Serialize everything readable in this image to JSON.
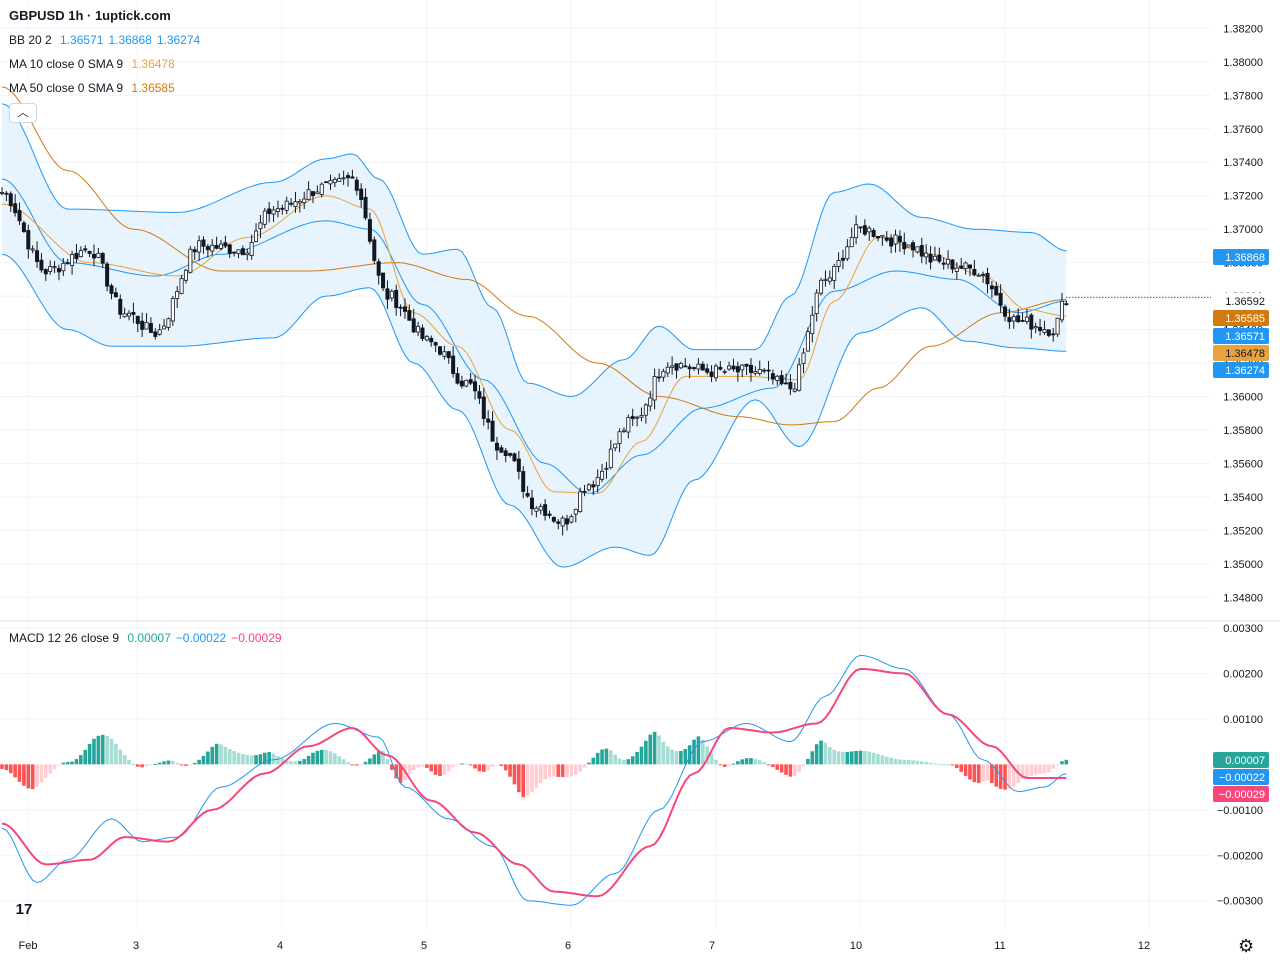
{
  "header": {
    "symbol_title": "GBPUSD 1h · 1uptick.com",
    "bb": {
      "label": "BB 20 2",
      "v1": "1.36571",
      "v2": "1.36868",
      "v3": "1.36274"
    },
    "ma10": {
      "label": "MA 10 close 0 SMA 9",
      "value": "1.36478"
    },
    "ma50": {
      "label": "MA 50 close 0 SMA 9",
      "value": "1.36585"
    },
    "macd": {
      "label": "MACD 12 26 close 9",
      "hist": "0.00007",
      "macd": "−0.00022",
      "signal": "−0.00029"
    }
  },
  "colors": {
    "bb": "#2196f3",
    "bb_fill": "#e3f2fd",
    "ma10": "#e8a33d",
    "ma50": "#d07a10",
    "up_hist": "#26a69a",
    "up_hist_light": "#a5dcd4",
    "down_hist": "#ff5252",
    "down_hist_light": "#ffcdd2",
    "signal": "#f7467a",
    "price_tag": "#131722"
  },
  "chart_data": [
    {
      "type": "candlestick",
      "title": "GBPUSD 1h",
      "x_tick_labels": [
        "Feb",
        "3",
        "4",
        "5",
        "6",
        "7",
        "10",
        "11",
        "12"
      ],
      "y_ticks": [
        "1.38200",
        "1.38000",
        "1.37800",
        "1.37600",
        "1.37400",
        "1.37200",
        "1.37000",
        "1.36800",
        "1.36600",
        "1.36400",
        "1.36200",
        "1.36000",
        "1.35800",
        "1.35600",
        "1.35400",
        "1.35200",
        "1.35000",
        "1.34800"
      ],
      "ylim": [
        1.347,
        1.3825
      ],
      "last_price": "1.36592",
      "price_labels": [
        "1.36868",
        "1.36592",
        "1.36585",
        "1.36571",
        "1.36478",
        "1.36274"
      ],
      "anchors": {
        "close": [
          [
            0,
            1.3722
          ],
          [
            10,
            1.3675
          ],
          [
            20,
            1.3688
          ],
          [
            28,
            1.365
          ],
          [
            35,
            1.3638
          ],
          [
            45,
            1.369
          ],
          [
            55,
            1.3688
          ],
          [
            62,
            1.3712
          ],
          [
            74,
            1.3725
          ],
          [
            80,
            1.373
          ],
          [
            88,
            1.366
          ],
          [
            98,
            1.3632
          ],
          [
            106,
            1.3608
          ],
          [
            114,
            1.357
          ],
          [
            122,
            1.3535
          ],
          [
            128,
            1.3525
          ],
          [
            134,
            1.3548
          ],
          [
            144,
            1.3585
          ],
          [
            152,
            1.362
          ],
          [
            162,
            1.3615
          ],
          [
            172,
            1.3615
          ],
          [
            180,
            1.3605
          ],
          [
            188,
            1.367
          ],
          [
            196,
            1.37
          ],
          [
            206,
            1.3692
          ],
          [
            214,
            1.368
          ],
          [
            222,
            1.3676
          ],
          [
            232,
            1.3645
          ],
          [
            240,
            1.364
          ],
          [
            243,
            1.3659
          ]
        ],
        "bb_upper": [
          [
            0,
            1.3775
          ],
          [
            15,
            1.3712
          ],
          [
            40,
            1.371
          ],
          [
            62,
            1.3728
          ],
          [
            74,
            1.3742
          ],
          [
            80,
            1.3745
          ],
          [
            86,
            1.373
          ],
          [
            96,
            1.3685
          ],
          [
            104,
            1.3688
          ],
          [
            112,
            1.3653
          ],
          [
            120,
            1.3608
          ],
          [
            130,
            1.36
          ],
          [
            142,
            1.3622
          ],
          [
            150,
            1.3642
          ],
          [
            158,
            1.3628
          ],
          [
            172,
            1.3628
          ],
          [
            180,
            1.366
          ],
          [
            190,
            1.3722
          ],
          [
            198,
            1.3727
          ],
          [
            210,
            1.3707
          ],
          [
            222,
            1.37
          ],
          [
            235,
            1.3698
          ],
          [
            243,
            1.3687
          ]
        ],
        "bb_lower": [
          [
            0,
            1.3685
          ],
          [
            15,
            1.364
          ],
          [
            25,
            1.363
          ],
          [
            40,
            1.363
          ],
          [
            62,
            1.3635
          ],
          [
            74,
            1.366
          ],
          [
            84,
            1.3665
          ],
          [
            94,
            1.362
          ],
          [
            104,
            1.3592
          ],
          [
            116,
            1.3535
          ],
          [
            128,
            1.3498
          ],
          [
            140,
            1.351
          ],
          [
            148,
            1.3505
          ],
          [
            158,
            1.355
          ],
          [
            172,
            1.3598
          ],
          [
            182,
            1.357
          ],
          [
            196,
            1.3638
          ],
          [
            210,
            1.3653
          ],
          [
            220,
            1.3633
          ],
          [
            232,
            1.3629
          ],
          [
            243,
            1.3627
          ]
        ],
        "bb_mid": [
          [
            0,
            1.373
          ],
          [
            15,
            1.368
          ],
          [
            35,
            1.3672
          ],
          [
            50,
            1.3685
          ],
          [
            74,
            1.3705
          ],
          [
            84,
            1.37
          ],
          [
            96,
            1.3655
          ],
          [
            110,
            1.361
          ],
          [
            124,
            1.356
          ],
          [
            134,
            1.3542
          ],
          [
            146,
            1.3565
          ],
          [
            160,
            1.3593
          ],
          [
            176,
            1.3605
          ],
          [
            190,
            1.3663
          ],
          [
            204,
            1.3675
          ],
          [
            218,
            1.367
          ],
          [
            232,
            1.365
          ],
          [
            243,
            1.3657
          ]
        ],
        "ma10": [
          [
            0,
            1.3715
          ],
          [
            20,
            1.368
          ],
          [
            40,
            1.3672
          ],
          [
            56,
            1.3695
          ],
          [
            74,
            1.372
          ],
          [
            84,
            1.3712
          ],
          [
            94,
            1.365
          ],
          [
            104,
            1.363
          ],
          [
            116,
            1.358
          ],
          [
            126,
            1.3543
          ],
          [
            136,
            1.3542
          ],
          [
            146,
            1.3573
          ],
          [
            156,
            1.3612
          ],
          [
            170,
            1.3612
          ],
          [
            182,
            1.361
          ],
          [
            190,
            1.3657
          ],
          [
            200,
            1.3695
          ],
          [
            212,
            1.3685
          ],
          [
            224,
            1.3672
          ],
          [
            234,
            1.3652
          ],
          [
            243,
            1.3648
          ]
        ],
        "ma50": [
          [
            0,
            1.3785
          ],
          [
            15,
            1.3735
          ],
          [
            30,
            1.37
          ],
          [
            50,
            1.3675
          ],
          [
            70,
            1.3675
          ],
          [
            90,
            1.368
          ],
          [
            106,
            1.367
          ],
          [
            120,
            1.3648
          ],
          [
            136,
            1.362
          ],
          [
            150,
            1.36
          ],
          [
            168,
            1.3588
          ],
          [
            180,
            1.3583
          ],
          [
            190,
            1.3585
          ],
          [
            200,
            1.3605
          ],
          [
            212,
            1.363
          ],
          [
            228,
            1.365
          ],
          [
            243,
            1.3658
          ]
        ]
      },
      "bar_count": 244
    },
    {
      "type": "macd",
      "title": "MACD 12 26 close 9",
      "y_ticks": [
        "0.00300",
        "0.00200",
        "0.00100",
        "−0.00100",
        "−0.00200",
        "−0.00300"
      ],
      "ylim": [
        -0.0036,
        0.003
      ],
      "values": {
        "histogram": "0.00007",
        "macd": "−0.00022",
        "signal": "−0.00029"
      },
      "anchors": {
        "macd": [
          [
            0,
            -0.0014
          ],
          [
            8,
            -0.0026
          ],
          [
            15,
            -0.0021
          ],
          [
            25,
            -0.0012
          ],
          [
            32,
            -0.0017
          ],
          [
            40,
            -0.0016
          ],
          [
            50,
            -0.0005
          ],
          [
            62,
            0.0001
          ],
          [
            76,
            0.0009
          ],
          [
            86,
            0.0006
          ],
          [
            92,
            -0.0005
          ],
          [
            102,
            -0.0012
          ],
          [
            112,
            -0.0018
          ],
          [
            120,
            -0.003
          ],
          [
            130,
            -0.0031
          ],
          [
            140,
            -0.0024
          ],
          [
            150,
            -0.001
          ],
          [
            160,
            0.0005
          ],
          [
            170,
            0.0009
          ],
          [
            180,
            0.0005
          ],
          [
            188,
            0.0015
          ],
          [
            196,
            0.0024
          ],
          [
            206,
            0.0021
          ],
          [
            216,
            0.0011
          ],
          [
            224,
            0.0001
          ],
          [
            232,
            -0.0006
          ],
          [
            238,
            -0.0005
          ],
          [
            243,
            -0.0002
          ]
        ],
        "signal": [
          [
            0,
            -0.0013
          ],
          [
            10,
            -0.0022
          ],
          [
            20,
            -0.0021
          ],
          [
            28,
            -0.0016
          ],
          [
            38,
            -0.0017
          ],
          [
            48,
            -0.001
          ],
          [
            60,
            -0.0002
          ],
          [
            70,
            0.0004
          ],
          [
            80,
            0.0008
          ],
          [
            88,
            0.0002
          ],
          [
            98,
            -0.0008
          ],
          [
            108,
            -0.0015
          ],
          [
            118,
            -0.0022
          ],
          [
            126,
            -0.0028
          ],
          [
            136,
            -0.0029
          ],
          [
            148,
            -0.0018
          ],
          [
            158,
            -0.0002
          ],
          [
            166,
            0.0008
          ],
          [
            176,
            0.0007
          ],
          [
            186,
            0.0009
          ],
          [
            196,
            0.0021
          ],
          [
            206,
            0.002
          ],
          [
            216,
            0.0011
          ],
          [
            226,
            0.0004
          ],
          [
            234,
            -0.0003
          ],
          [
            243,
            -0.0003
          ]
        ]
      }
    }
  ]
}
